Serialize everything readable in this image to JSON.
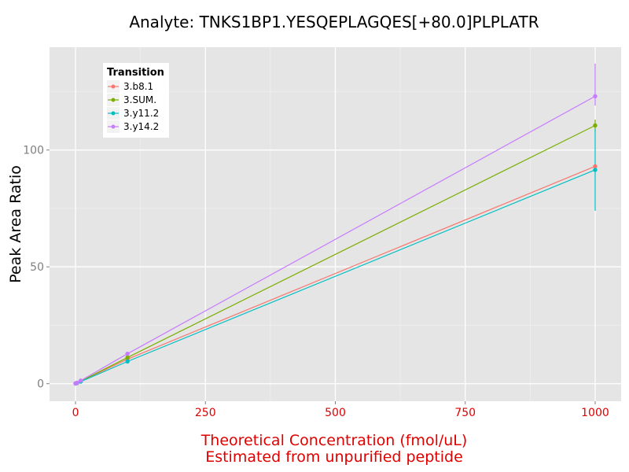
{
  "chart_data": {
    "type": "line",
    "title": "Analyte: TNKS1BP1.YESQEPLAGQES[+80.0]PLPLATR",
    "xlabel_line1": "Theoretical Concentration (fmol/uL)",
    "xlabel_line2": "Estimated from unpurified peptide",
    "ylabel": "Peak Area Ratio",
    "xlim": [
      -50,
      1050
    ],
    "ylim": [
      -7.5,
      144
    ],
    "x_ticks": [
      0,
      250,
      500,
      750,
      1000
    ],
    "y_ticks": [
      0,
      50,
      100
    ],
    "grid": true,
    "legend": {
      "title": "Transition",
      "position": "top-left"
    },
    "series": [
      {
        "name": "3.b8.1",
        "color": "#f8766d",
        "points": [
          {
            "x": 0,
            "y": 0.1
          },
          {
            "x": 1,
            "y": 0.15
          },
          {
            "x": 3,
            "y": 0.3
          },
          {
            "x": 10,
            "y": 1.0
          },
          {
            "x": 100,
            "y": 10.5
          },
          {
            "x": 1000,
            "y": 93
          }
        ]
      },
      {
        "name": "3.SUM.",
        "color": "#7cae00",
        "points": [
          {
            "x": 0,
            "y": 0.1
          },
          {
            "x": 1,
            "y": 0.15
          },
          {
            "x": 3,
            "y": 0.35
          },
          {
            "x": 10,
            "y": 1.1
          },
          {
            "x": 100,
            "y": 11.2
          },
          {
            "x": 1000,
            "y": 110.5,
            "err": [
              108,
              113
            ]
          }
        ]
      },
      {
        "name": "3.y11.2",
        "color": "#00bfc4",
        "points": [
          {
            "x": 0,
            "y": 0.1
          },
          {
            "x": 1,
            "y": 0.15
          },
          {
            "x": 3,
            "y": 0.3
          },
          {
            "x": 10,
            "y": 0.9
          },
          {
            "x": 100,
            "y": 9.5
          },
          {
            "x": 1000,
            "y": 91.5,
            "err": [
              74,
              109
            ]
          }
        ]
      },
      {
        "name": "3.y14.2",
        "color": "#c77cff",
        "points": [
          {
            "x": 0,
            "y": 0.1
          },
          {
            "x": 1,
            "y": 0.2
          },
          {
            "x": 3,
            "y": 0.4
          },
          {
            "x": 10,
            "y": 1.3
          },
          {
            "x": 100,
            "y": 12.8
          },
          {
            "x": 1000,
            "y": 123,
            "err": [
              119,
              137
            ]
          }
        ]
      }
    ]
  }
}
